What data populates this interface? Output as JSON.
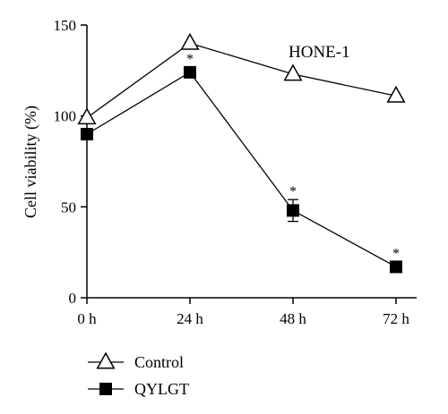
{
  "chart_data": {
    "type": "line",
    "title": "",
    "annotation": "HONE-1",
    "xlabel": "",
    "ylabel": "Cell viability (%)",
    "categories": [
      "0 h",
      "24 h",
      "48 h",
      "72 h"
    ],
    "ylim": [
      0,
      150
    ],
    "yticks": [
      "0",
      "50",
      "100",
      "150"
    ],
    "grid": false,
    "legend": "bottom-left",
    "series": [
      {
        "name": "Control",
        "marker": "open-triangle",
        "values": [
          99,
          140,
          123,
          111
        ],
        "errors": [
          0,
          0,
          0,
          0
        ],
        "significance": [
          "",
          "",
          "",
          ""
        ]
      },
      {
        "name": "QYLGT",
        "marker": "filled-square",
        "values": [
          90,
          124,
          48,
          17
        ],
        "errors": [
          0,
          0,
          6,
          0
        ],
        "significance": [
          "",
          "*",
          "*",
          "*"
        ]
      }
    ]
  }
}
